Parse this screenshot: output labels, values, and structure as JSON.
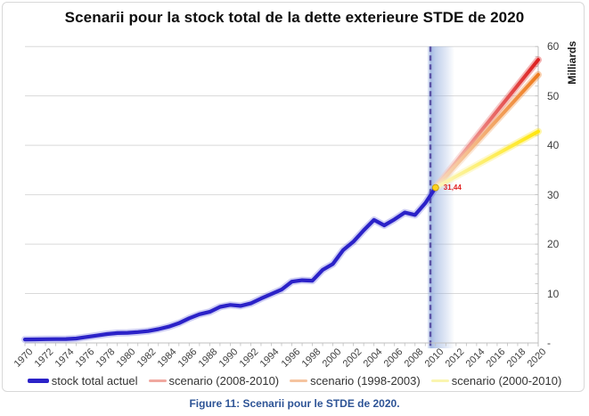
{
  "title": "Scenarii pour la stock total de la dette exterieure STDE de 2020",
  "caption": "Figure 11: Scenarii pour le STDE de 2020.",
  "chart_data": {
    "type": "line",
    "title": "Scenarii pour la stock total de la dette exterieure STDE de 2020",
    "x_axis": {
      "tick_years": [
        1970,
        1972,
        1974,
        1976,
        1978,
        1980,
        1982,
        1984,
        1986,
        1988,
        1990,
        1992,
        1994,
        1996,
        1998,
        2000,
        2002,
        2004,
        2006,
        2008,
        2010,
        2012,
        2014,
        2016,
        2018,
        2020
      ],
      "range": [
        1970,
        2020
      ],
      "minor_tick_every": 1
    },
    "y_axis": {
      "title": "Milliards",
      "side": "right",
      "tick_labels": [
        "60",
        "50",
        "40",
        "30",
        "20",
        "10",
        "-"
      ],
      "tick_values": [
        60,
        50,
        40,
        30,
        20,
        10,
        0
      ],
      "range": [
        0,
        60
      ],
      "grid": "horizontal"
    },
    "series": [
      {
        "name": "stock total actuel",
        "kind": "actual",
        "color": "#2B22C8",
        "years": [
          1970,
          1971,
          1972,
          1973,
          1974,
          1975,
          1976,
          1977,
          1978,
          1979,
          1980,
          1981,
          1982,
          1983,
          1984,
          1985,
          1986,
          1987,
          1988,
          1989,
          1990,
          1991,
          1992,
          1993,
          1994,
          1995,
          1996,
          1997,
          1998,
          1999,
          2000,
          2001,
          2002,
          2003,
          2004,
          2005,
          2006,
          2007,
          2008,
          2009,
          2010
        ],
        "values": [
          0.7,
          0.72,
          0.75,
          0.78,
          0.8,
          0.9,
          1.2,
          1.5,
          1.8,
          2.0,
          2.05,
          2.2,
          2.4,
          2.8,
          3.3,
          4.0,
          5.0,
          5.8,
          6.3,
          7.3,
          7.7,
          7.5,
          8.0,
          9.0,
          9.9,
          10.8,
          12.4,
          12.7,
          12.6,
          14.8,
          16.0,
          18.8,
          20.5,
          22.8,
          24.9,
          23.8,
          25.0,
          26.4,
          25.9,
          28.3,
          31.44
        ]
      },
      {
        "name": "scenario (2008-2010)",
        "kind": "scenario",
        "color_start": "#F6C9C4",
        "color_end": "#DD1F1F",
        "years": [
          2010,
          2020
        ],
        "values": [
          31.44,
          57.3
        ]
      },
      {
        "name": "scenario (1998-2003)",
        "kind": "scenario",
        "color_start": "#F8DCC0",
        "color_end": "#EE7B1E",
        "years": [
          2010,
          2020
        ],
        "values": [
          31.44,
          54.3
        ]
      },
      {
        "name": "scenario (2000-2010)",
        "kind": "scenario",
        "color_start": "#FBF6C0",
        "color_end": "#FFE60E",
        "years": [
          2010,
          2020
        ],
        "values": [
          31.44,
          42.8
        ]
      }
    ],
    "annotation": {
      "label": "31,44",
      "year": 2010,
      "value": 31.44,
      "color": "#E02020",
      "marker_color": "#FFD21E"
    },
    "vertical_marker": {
      "year": 2009.5,
      "style": "dashed",
      "color": "#5B52A5"
    },
    "highlight_band": {
      "from_year": 2009.2,
      "to_year": 2011.8,
      "color": "#8FAADC"
    },
    "colors": {
      "gridline": "#D9D9D9",
      "axis": "#BFBFBF",
      "actual_line": "#2B22C8",
      "caption": "#2E5496"
    },
    "legend": {
      "position": "bottom",
      "items": [
        {
          "label": "stock total actuel",
          "swatch": "#2B22C8",
          "thick": true
        },
        {
          "label": "scenario (2008-2010)",
          "swatch": "#F0A8A0",
          "thick": false
        },
        {
          "label": "scenario (1998-2003)",
          "swatch": "#F5C4A0",
          "thick": false
        },
        {
          "label": "scenario (2000-2010)",
          "swatch": "#FAF5B0",
          "thick": false
        }
      ]
    }
  }
}
